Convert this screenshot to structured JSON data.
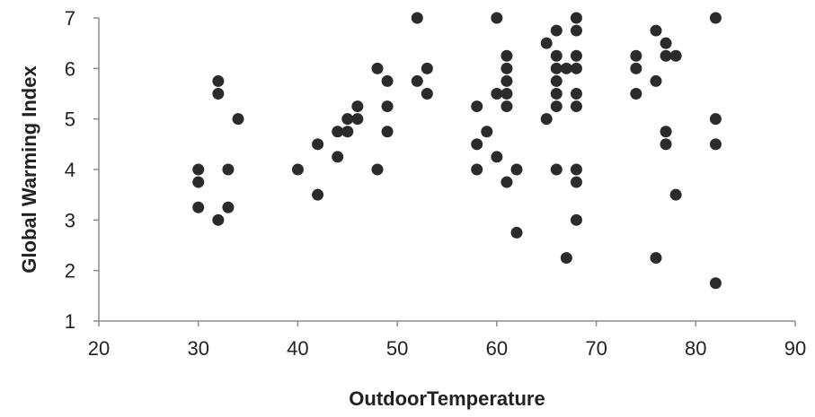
{
  "chart_data": {
    "type": "scatter",
    "title": "",
    "xlabel": "OutdoorTemperature",
    "ylabel": "Global Warming Index",
    "xlim": [
      20,
      90
    ],
    "ylim": [
      1,
      7
    ],
    "x_ticks": [
      "20",
      "30",
      "40",
      "50",
      "60",
      "70",
      "80",
      "90"
    ],
    "y_ticks": [
      "1",
      "2",
      "3",
      "4",
      "5",
      "6",
      "7"
    ],
    "grid": false,
    "legend": "none",
    "marker_color": "#2b2b2b",
    "series": [
      {
        "points": [
          [
            30,
            4.0
          ],
          [
            30,
            3.75
          ],
          [
            30,
            3.25
          ],
          [
            32,
            5.75
          ],
          [
            32,
            5.5
          ],
          [
            32,
            3.0
          ],
          [
            33,
            4.0
          ],
          [
            33,
            3.25
          ],
          [
            34,
            5.0
          ],
          [
            40,
            4.0
          ],
          [
            42,
            4.5
          ],
          [
            42,
            3.5
          ],
          [
            44,
            4.75
          ],
          [
            44,
            4.25
          ],
          [
            45,
            5.0
          ],
          [
            45,
            4.75
          ],
          [
            46,
            5.25
          ],
          [
            46,
            5.0
          ],
          [
            48,
            6.0
          ],
          [
            48,
            4.0
          ],
          [
            49,
            5.75
          ],
          [
            49,
            5.25
          ],
          [
            49,
            4.75
          ],
          [
            52,
            7.0
          ],
          [
            52,
            5.75
          ],
          [
            53,
            6.0
          ],
          [
            53,
            5.5
          ],
          [
            58,
            5.25
          ],
          [
            58,
            4.5
          ],
          [
            58,
            4.0
          ],
          [
            59,
            4.75
          ],
          [
            60,
            7.0
          ],
          [
            60,
            5.5
          ],
          [
            60,
            4.25
          ],
          [
            61,
            6.25
          ],
          [
            61,
            6.0
          ],
          [
            61,
            5.75
          ],
          [
            61,
            5.5
          ],
          [
            61,
            5.25
          ],
          [
            61,
            3.75
          ],
          [
            62,
            4.0
          ],
          [
            62,
            2.75
          ],
          [
            65,
            6.5
          ],
          [
            65,
            5.0
          ],
          [
            66,
            6.75
          ],
          [
            66,
            6.25
          ],
          [
            66,
            6.0
          ],
          [
            66,
            5.75
          ],
          [
            66,
            5.5
          ],
          [
            66,
            5.25
          ],
          [
            66,
            4.0
          ],
          [
            67,
            6.0
          ],
          [
            67,
            2.25
          ],
          [
            68,
            7.0
          ],
          [
            68,
            6.75
          ],
          [
            68,
            6.25
          ],
          [
            68,
            6.0
          ],
          [
            68,
            5.5
          ],
          [
            68,
            5.25
          ],
          [
            68,
            4.0
          ],
          [
            68,
            3.75
          ],
          [
            68,
            3.0
          ],
          [
            74,
            6.25
          ],
          [
            74,
            6.0
          ],
          [
            74,
            5.5
          ],
          [
            76,
            6.75
          ],
          [
            76,
            5.75
          ],
          [
            76,
            2.25
          ],
          [
            77,
            6.5
          ],
          [
            77,
            6.25
          ],
          [
            77,
            4.75
          ],
          [
            77,
            4.5
          ],
          [
            78,
            6.25
          ],
          [
            78,
            3.5
          ],
          [
            82,
            7.0
          ],
          [
            82,
            5.0
          ],
          [
            82,
            4.5
          ],
          [
            82,
            1.75
          ]
        ]
      }
    ]
  }
}
